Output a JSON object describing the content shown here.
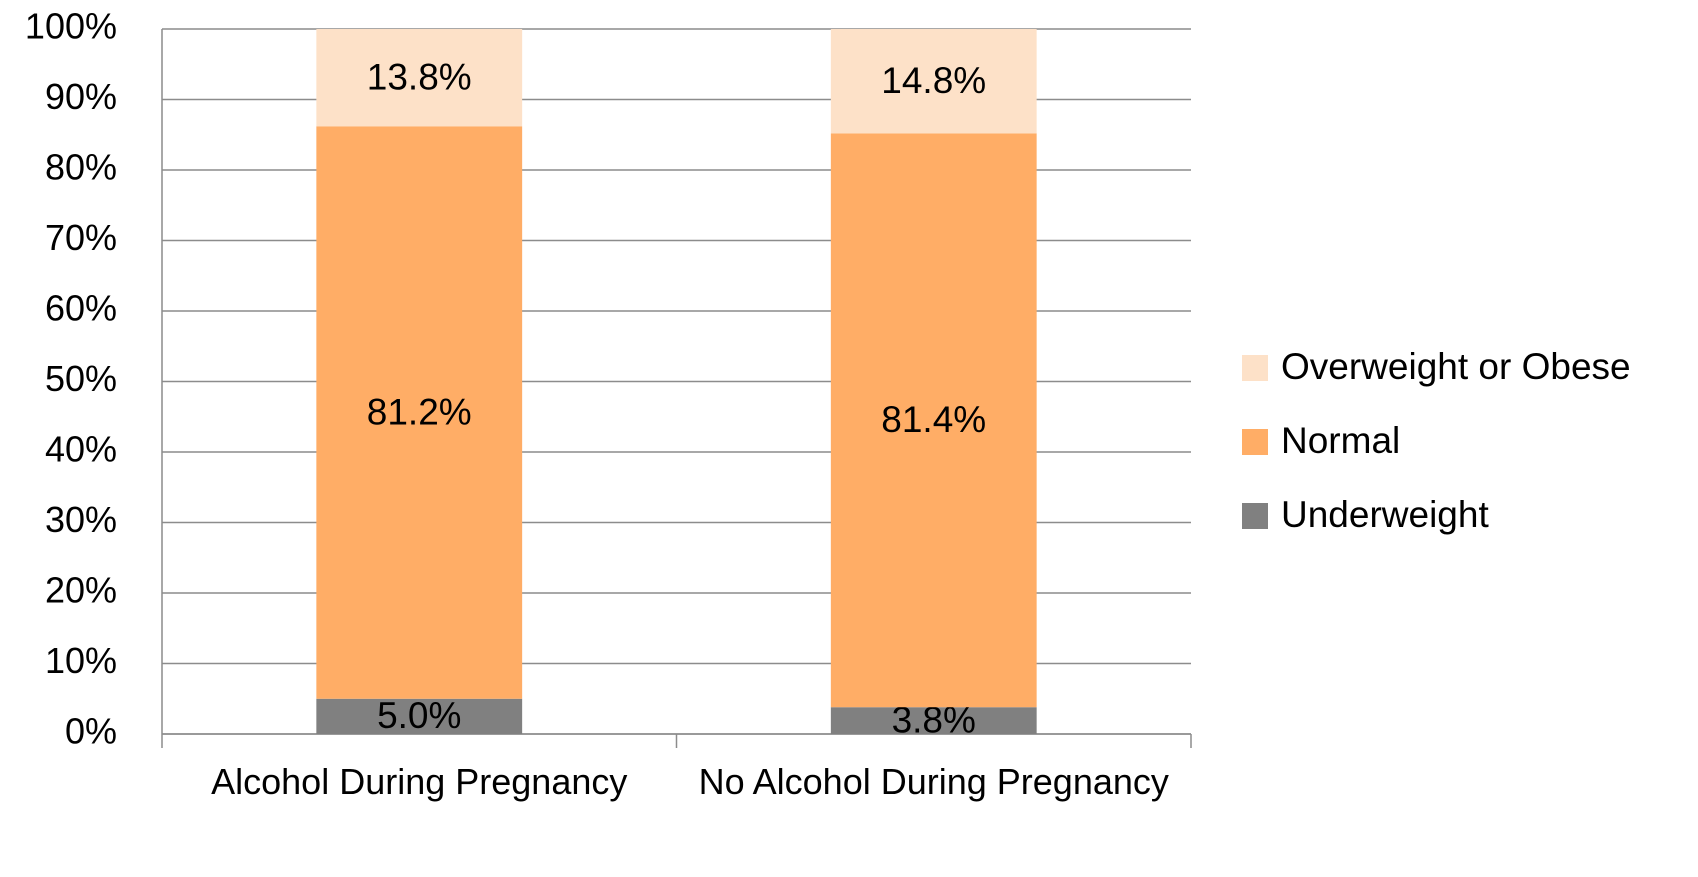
{
  "chart_data": {
    "type": "stacked_bar",
    "categories": [
      "Alcohol During Pregnancy",
      "No Alcohol During Pregnancy"
    ],
    "series": [
      {
        "name": "Underweight",
        "color": "#808080",
        "values": [
          5.0,
          3.8
        ],
        "value_labels": [
          "5.0%",
          "3.8%"
        ]
      },
      {
        "name": "Normal",
        "color": "#ffad66",
        "values": [
          81.2,
          81.4
        ],
        "value_labels": [
          "81.2%",
          "81.4%"
        ]
      },
      {
        "name": "Overweight or Obese",
        "color": "#fde1c8",
        "values": [
          13.8,
          14.8
        ],
        "value_labels": [
          "13.8%",
          "14.8%"
        ]
      }
    ],
    "ylim": [
      0,
      100
    ],
    "yticks": [
      {
        "value": 0,
        "label": "0%"
      },
      {
        "value": 10,
        "label": "10%"
      },
      {
        "value": 20,
        "label": "20%"
      },
      {
        "value": 30,
        "label": "30%"
      },
      {
        "value": 40,
        "label": "40%"
      },
      {
        "value": 50,
        "label": "50%"
      },
      {
        "value": 60,
        "label": "60%"
      },
      {
        "value": 70,
        "label": "70%"
      },
      {
        "value": 80,
        "label": "80%"
      },
      {
        "value": 90,
        "label": "90%"
      },
      {
        "value": 100,
        "label": "100%"
      }
    ],
    "grid": true,
    "legend": "right"
  }
}
